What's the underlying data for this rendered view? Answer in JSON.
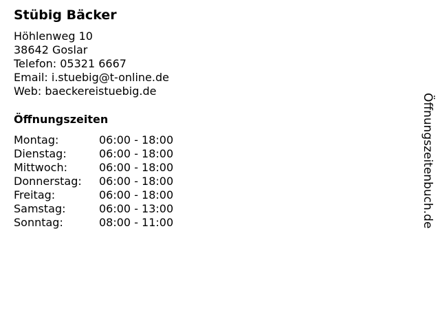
{
  "business": {
    "name": "Stübig Bäcker",
    "street": "Höhlenweg 10",
    "city": "38642 Goslar",
    "phone": "Telefon: 05321 6667",
    "email": "Email: i.stuebig@t-online.de",
    "web": "Web: baeckereistuebig.de"
  },
  "hours": {
    "title": "Öffnungszeiten",
    "rows": [
      {
        "day": "Montag:",
        "time": "06:00 - 18:00"
      },
      {
        "day": "Dienstag:",
        "time": "06:00 - 18:00"
      },
      {
        "day": "Mittwoch:",
        "time": "06:00 - 18:00"
      },
      {
        "day": "Donnerstag:",
        "time": "06:00 - 18:00"
      },
      {
        "day": "Freitag:",
        "time": "06:00 - 18:00"
      },
      {
        "day": "Samstag:",
        "time": "06:00 - 13:00"
      },
      {
        "day": "Sonntag:",
        "time": "08:00 - 11:00"
      }
    ]
  },
  "watermark": "Öffnungszeitenbuch.de"
}
